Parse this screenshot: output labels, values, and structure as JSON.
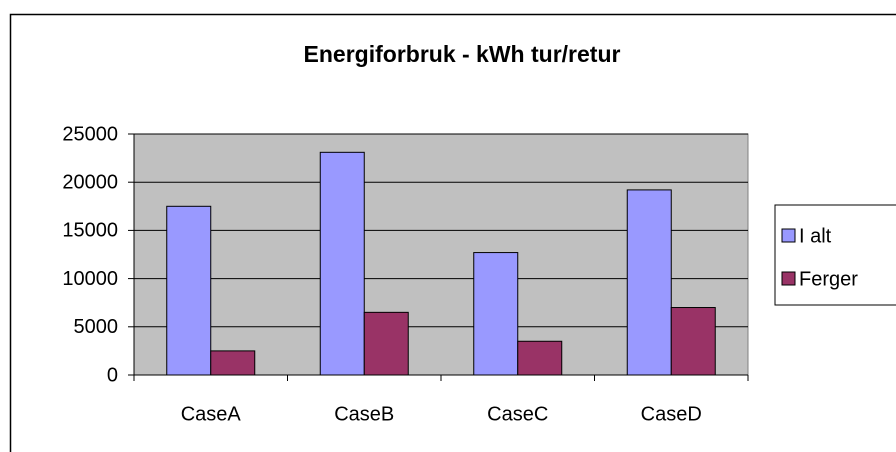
{
  "chart_data": {
    "type": "bar",
    "title": "Energiforbruk - kWh tur/retur",
    "categories": [
      "CaseA",
      "CaseB",
      "CaseC",
      "CaseD"
    ],
    "series": [
      {
        "name": "I alt",
        "color": "#9999ff",
        "values": [
          17500,
          23100,
          12700,
          19200
        ]
      },
      {
        "name": "Ferger",
        "color": "#993366",
        "values": [
          2500,
          6500,
          3500,
          7000
        ]
      }
    ],
    "ylim": [
      0,
      25000
    ],
    "yticks": [
      0,
      5000,
      10000,
      15000,
      20000,
      25000
    ],
    "grid": true,
    "legend": "right",
    "plot_background": "#c0c0c0"
  }
}
